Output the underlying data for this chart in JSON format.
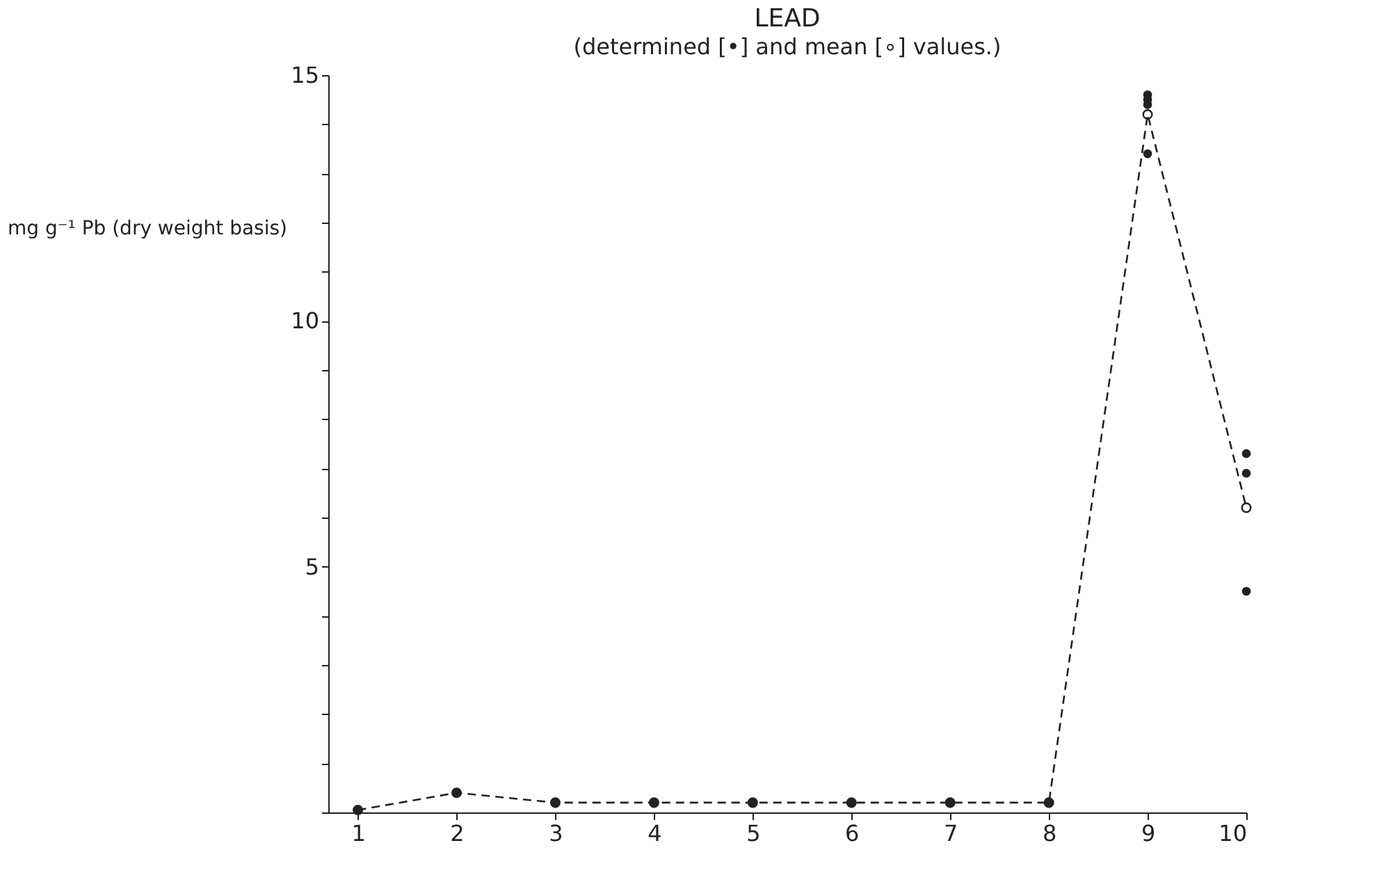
{
  "chart_data": {
    "type": "line",
    "title": "LEAD",
    "subtitle": "(determined [•] and mean [∘] values.)",
    "ylabel": "mg g⁻¹ Pb (dry weight basis)",
    "x": [
      1,
      2,
      3,
      4,
      5,
      6,
      7,
      8,
      9,
      10
    ],
    "xlim": [
      0.7,
      10
    ],
    "xticks": [
      1,
      2,
      3,
      4,
      5,
      6,
      7,
      8,
      9,
      10
    ],
    "ylim": [
      0,
      15
    ],
    "yticks": [
      {
        "value": 0,
        "label": null
      },
      {
        "value": 1,
        "label": null
      },
      {
        "value": 2,
        "label": null
      },
      {
        "value": 3,
        "label": null
      },
      {
        "value": 4,
        "label": null
      },
      5,
      {
        "value": 6,
        "label": null
      },
      {
        "value": 7,
        "label": null
      },
      {
        "value": 8,
        "label": null
      },
      {
        "value": 9,
        "label": null
      },
      10,
      {
        "value": 11,
        "label": null
      },
      {
        "value": 12,
        "label": null
      },
      {
        "value": 13,
        "label": null
      },
      {
        "value": 14,
        "label": null
      },
      15
    ],
    "grid": false,
    "series": [
      {
        "type": "line",
        "color": "#222222",
        "line_style": "dashed",
        "marker": "circle",
        "values": [
          0.05,
          0.4,
          0.2,
          0.2,
          0.2,
          0.2,
          0.2,
          0.2,
          14.2,
          6.2
        ]
      },
      {
        "type": "scatter",
        "color": "#222222",
        "marker": "circle",
        "x": [
          1,
          2,
          3,
          4,
          5,
          6,
          7,
          8,
          9,
          9,
          9,
          9,
          10,
          10,
          10
        ],
        "values": [
          0.05,
          0.4,
          0.2,
          0.2,
          0.2,
          0.2,
          0.2,
          0.2,
          14.6,
          14.5,
          14.4,
          13.4,
          7.3,
          6.9,
          4.5
        ]
      }
    ]
  }
}
